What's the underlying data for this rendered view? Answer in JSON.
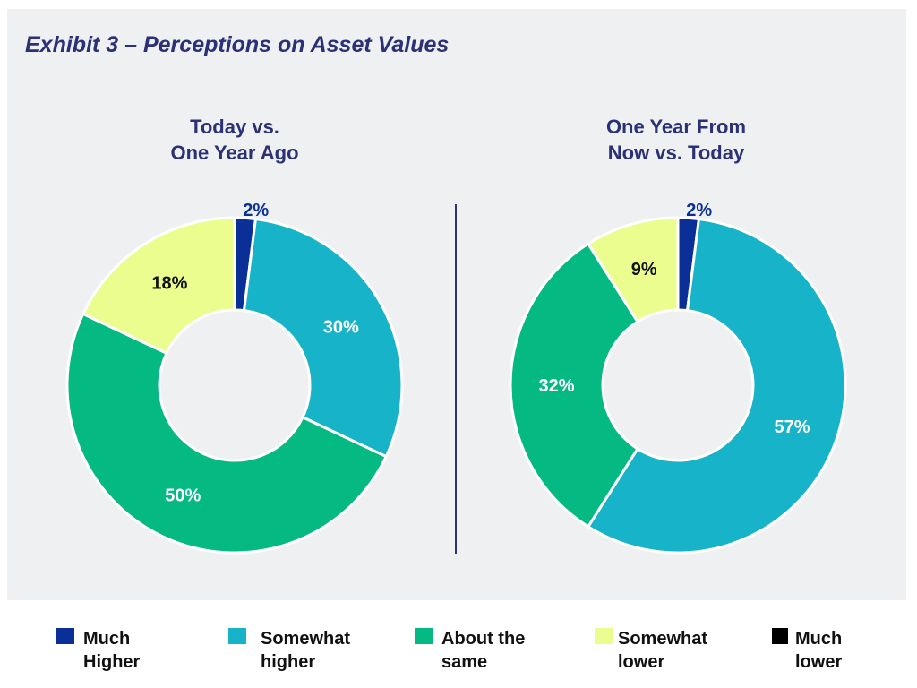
{
  "title": "Exhibit 3 – Perceptions on Asset Values",
  "chart_data": [
    {
      "type": "pie",
      "subtitle": [
        "Today vs.",
        "One Year Ago"
      ],
      "categories": [
        "Much Higher",
        "Somewhat higher",
        "About the same",
        "Somewhat lower",
        "Much lower"
      ],
      "values": [
        2,
        30,
        50,
        18,
        0
      ],
      "labels": [
        "2%",
        "30%",
        "50%",
        "18%",
        ""
      ]
    },
    {
      "type": "pie",
      "subtitle": [
        "One Year From",
        "Now vs. Today"
      ],
      "categories": [
        "Much Higher",
        "Somewhat higher",
        "About the same",
        "Somewhat lower",
        "Much lower"
      ],
      "values": [
        2,
        57,
        32,
        9,
        0
      ],
      "labels": [
        "2%",
        "57%",
        "32%",
        "9%",
        ""
      ]
    }
  ],
  "legend": [
    {
      "line1": "Much",
      "line2": "Higher",
      "color": "#0a2f96"
    },
    {
      "line1": "Somewhat",
      "line2": "higher",
      "color": "#17b3c8"
    },
    {
      "line1": "About the",
      "line2": "same",
      "color": "#04b982"
    },
    {
      "line1": "Somewhat",
      "line2": "lower",
      "color": "#ebfd8f"
    },
    {
      "line1": "Much",
      "line2": "lower",
      "color": "#000000"
    }
  ]
}
